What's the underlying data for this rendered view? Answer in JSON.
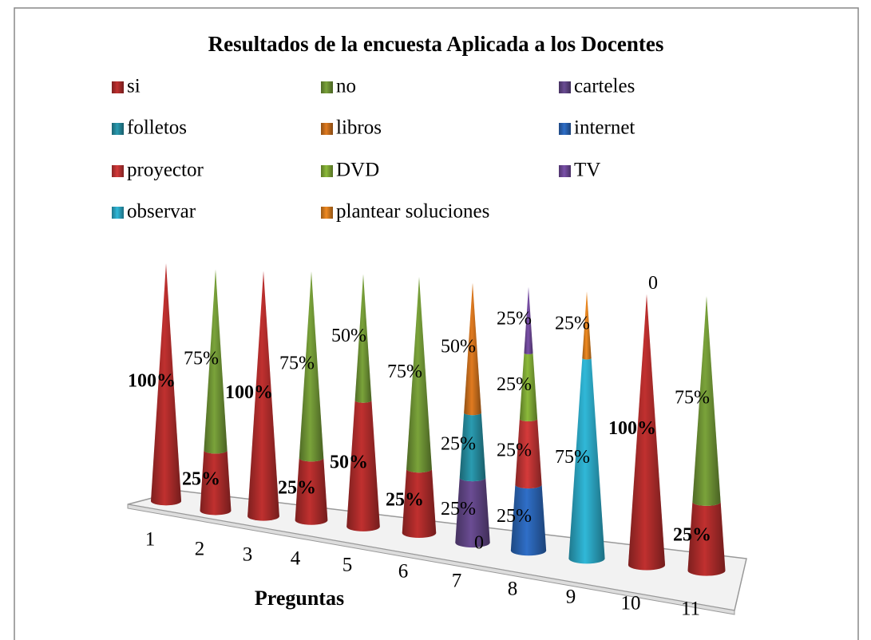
{
  "chart_data": {
    "type": "bar3d-cone-stacked",
    "title": "Resultados de la encuesta Aplicada a los Docentes",
    "x_label": "Preguntas",
    "categories": [
      "1",
      "2",
      "3",
      "4",
      "5",
      "6",
      "7",
      "8",
      "9",
      "10",
      "11"
    ],
    "ylim": [
      0,
      100
    ],
    "series": [
      {
        "name": "si",
        "color": "#c0302f",
        "values": [
          100,
          25,
          100,
          25,
          50,
          25,
          null,
          null,
          null,
          100,
          25
        ],
        "value_labels": [
          "100%",
          "25%",
          "100%",
          "25%",
          "50%",
          "25%",
          null,
          null,
          null,
          "100%",
          "25%"
        ]
      },
      {
        "name": "no",
        "color": "#7aa33a",
        "values": [
          null,
          75,
          null,
          75,
          50,
          75,
          0,
          null,
          null,
          0,
          75
        ],
        "value_labels": [
          null,
          "75%",
          null,
          "75%",
          "50%",
          "75%",
          "0",
          null,
          null,
          "0",
          "75%"
        ]
      },
      {
        "name": "carteles",
        "color": "#6a4c93",
        "values": [
          null,
          null,
          null,
          null,
          null,
          null,
          25,
          null,
          null,
          null,
          null
        ],
        "value_labels": [
          null,
          null,
          null,
          null,
          null,
          null,
          "25%",
          null,
          null,
          null,
          null
        ]
      },
      {
        "name": "folletos",
        "color": "#2a9bb0",
        "values": [
          null,
          null,
          null,
          null,
          null,
          null,
          25,
          null,
          null,
          null,
          null
        ],
        "value_labels": [
          null,
          null,
          null,
          null,
          null,
          null,
          "25%",
          null,
          null,
          null,
          null
        ]
      },
      {
        "name": "libros",
        "color": "#e07b20",
        "values": [
          null,
          null,
          null,
          null,
          null,
          null,
          50,
          null,
          null,
          null,
          null
        ],
        "value_labels": [
          null,
          null,
          null,
          null,
          null,
          null,
          "50%",
          null,
          null,
          null,
          null
        ]
      },
      {
        "name": "internet",
        "color": "#2f6fc8",
        "values": [
          null,
          null,
          null,
          null,
          null,
          null,
          null,
          25,
          null,
          null,
          null
        ],
        "value_labels": [
          null,
          null,
          null,
          null,
          null,
          null,
          null,
          "25%",
          null,
          null,
          null
        ]
      },
      {
        "name": "proyector",
        "color": "#d43a3a",
        "values": [
          null,
          null,
          null,
          null,
          null,
          null,
          null,
          25,
          null,
          null,
          null
        ],
        "value_labels": [
          null,
          null,
          null,
          null,
          null,
          null,
          null,
          "25%",
          null,
          null,
          null
        ]
      },
      {
        "name": "DVD",
        "color": "#8cba3a",
        "values": [
          null,
          null,
          null,
          null,
          null,
          null,
          null,
          25,
          null,
          null,
          null
        ],
        "value_labels": [
          null,
          null,
          null,
          null,
          null,
          null,
          null,
          "25%",
          null,
          null,
          null
        ]
      },
      {
        "name": "TV",
        "color": "#7a50a8",
        "values": [
          null,
          null,
          null,
          null,
          null,
          null,
          null,
          25,
          null,
          null,
          null
        ],
        "value_labels": [
          null,
          null,
          null,
          null,
          null,
          null,
          null,
          "25%",
          null,
          null,
          null
        ]
      },
      {
        "name": "observar",
        "color": "#30b8d8",
        "values": [
          null,
          null,
          null,
          null,
          null,
          null,
          null,
          null,
          75,
          null,
          null
        ],
        "value_labels": [
          null,
          null,
          null,
          null,
          null,
          null,
          null,
          null,
          "75%",
          null,
          null
        ]
      },
      {
        "name": "plantear soluciones",
        "color": "#f08a20",
        "values": [
          null,
          null,
          null,
          null,
          null,
          null,
          null,
          null,
          25,
          null,
          null
        ],
        "value_labels": [
          null,
          null,
          null,
          null,
          null,
          null,
          null,
          null,
          "25%",
          null,
          null
        ]
      }
    ]
  }
}
